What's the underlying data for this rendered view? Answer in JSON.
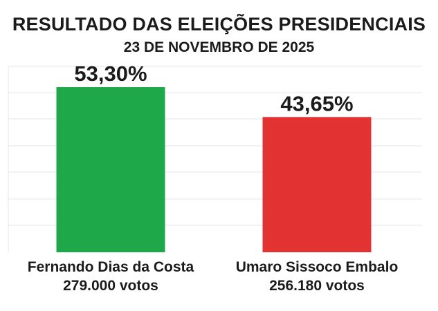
{
  "header": {
    "title": "RESULTADO DAS ELEIÇÕES PRESIDENCIAIS",
    "subtitle": "23 DE NOVEMBRO DE 2025"
  },
  "chart_data": {
    "type": "bar",
    "title": "RESULTADO DAS ELEIÇÕES PRESIDENCIAIS",
    "subtitle": "23 DE NOVEMBRO DE 2025",
    "categories": [
      "Fernando Dias da Costa",
      "Umaro Sissoco Embalo"
    ],
    "values": [
      53.3,
      43.65
    ],
    "value_labels": [
      "53,30%",
      "43,65%"
    ],
    "votes_labels": [
      "279.000 votos",
      "256.180 votos"
    ],
    "colors": [
      "#1fa84a",
      "#e23232"
    ],
    "xlabel": "",
    "ylabel": "",
    "ylim": [
      0,
      60
    ],
    "grid": true
  }
}
